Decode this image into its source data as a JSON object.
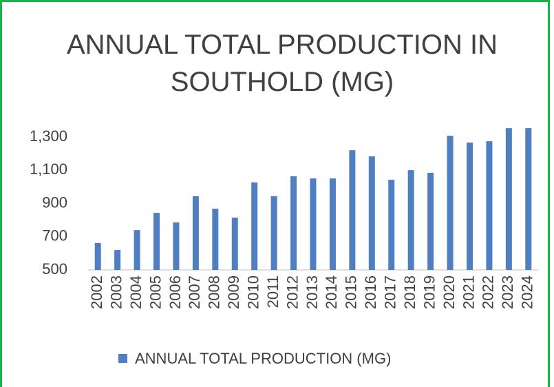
{
  "chart_data": {
    "type": "bar",
    "title": "ANNUAL TOTAL PRODUCTION IN SOUTHOLD (MG)",
    "categories": [
      "2002",
      "2003",
      "2004",
      "2005",
      "2006",
      "2007",
      "2008",
      "2009",
      "2010",
      "2011",
      "2012",
      "2013",
      "2014",
      "2015",
      "2016",
      "2017",
      "2018",
      "2019",
      "2020",
      "2021",
      "2022",
      "2023",
      "2024"
    ],
    "series": [
      {
        "name": "ANNUAL TOTAL PRODUCTION (MG)",
        "color": "#4f7fc0",
        "values": [
          662,
          620,
          740,
          844,
          786,
          944,
          869,
          815,
          1027,
          944,
          1064,
          1051,
          1051,
          1221,
          1184,
          1043,
          1101,
          1085,
          1308,
          1267,
          1275,
          1354,
          1354
        ]
      }
    ],
    "ylim": [
      500,
      1400
    ],
    "yticks": [
      500,
      700,
      900,
      {
        "value": 1100,
        "label": "1,100"
      },
      {
        "value": 1300,
        "label": "1,300"
      }
    ],
    "grid": false,
    "legend": "bottom"
  }
}
